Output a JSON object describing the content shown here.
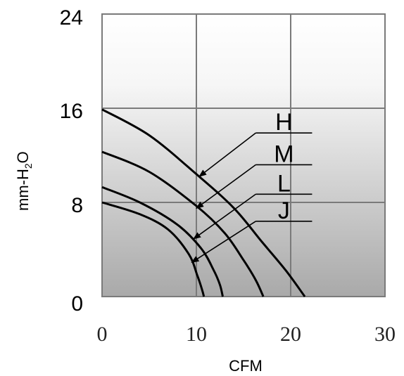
{
  "chart_data": {
    "type": "line",
    "xlabel": "CFM",
    "ylabel_main": "mm-H",
    "ylabel_sub": "2",
    "ylabel_end": "O",
    "xlim": [
      0,
      30
    ],
    "ylim": [
      0,
      24
    ],
    "xticks": [
      "0",
      "10",
      "20",
      "30"
    ],
    "yticks": [
      "0",
      "8",
      "16",
      "24"
    ],
    "grid": true,
    "series": [
      {
        "name": "H",
        "points": [
          [
            0,
            15.9
          ],
          [
            5,
            13.7
          ],
          [
            10,
            10.4
          ],
          [
            14,
            7.5
          ],
          [
            17,
            4.6
          ],
          [
            19.5,
            2.2
          ],
          [
            21.5,
            0
          ]
        ]
      },
      {
        "name": "M",
        "points": [
          [
            0,
            12.3
          ],
          [
            5,
            10.6
          ],
          [
            10,
            7.7
          ],
          [
            13,
            5.4
          ],
          [
            15,
            3.1
          ],
          [
            16.3,
            1.4
          ],
          [
            17.1,
            0
          ]
        ]
      },
      {
        "name": "L",
        "points": [
          [
            0,
            9.3
          ],
          [
            4,
            8.0
          ],
          [
            8,
            6.1
          ],
          [
            10.5,
            4.1
          ],
          [
            11.8,
            2.3
          ],
          [
            12.5,
            1.0
          ],
          [
            12.8,
            0
          ]
        ]
      },
      {
        "name": "J",
        "points": [
          [
            0,
            8.0
          ],
          [
            4,
            7.0
          ],
          [
            7,
            5.7
          ],
          [
            9.2,
            3.6
          ],
          [
            10.1,
            1.8
          ],
          [
            10.6,
            0.6
          ],
          [
            10.8,
            0
          ]
        ]
      }
    ],
    "label_anchors": [
      [
        16.3,
        13.9
      ],
      [
        16.3,
        11.2
      ],
      [
        16.3,
        8.7
      ],
      [
        16.3,
        6.4
      ]
    ],
    "arrow_targets": [
      [
        10.3,
        10.2
      ],
      [
        10.0,
        7.5
      ],
      [
        9.7,
        4.9
      ],
      [
        9.5,
        2.9
      ]
    ]
  }
}
